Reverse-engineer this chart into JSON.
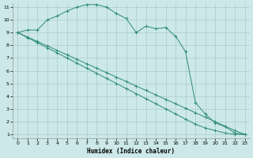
{
  "xlabel": "Humidex (Indice chaleur)",
  "bg_color": "#cce8e8",
  "grid_color": "#aacccc",
  "line_color": "#2e8b7a",
  "xlim_min": -0.5,
  "xlim_max": 23.5,
  "ylim_min": 0.7,
  "ylim_max": 11.3,
  "x_ticks": [
    0,
    1,
    2,
    3,
    4,
    5,
    6,
    7,
    8,
    9,
    10,
    11,
    12,
    13,
    14,
    15,
    16,
    17,
    18,
    19,
    20,
    21,
    22,
    23
  ],
  "y_ticks": [
    1,
    2,
    3,
    4,
    5,
    6,
    7,
    8,
    9,
    10,
    11
  ],
  "line1_x": [
    0,
    1,
    2,
    3,
    4,
    5,
    6,
    7,
    8,
    9,
    10,
    11,
    12,
    13,
    14,
    15,
    16,
    17,
    18,
    19,
    20,
    21,
    22,
    23
  ],
  "line1_y": [
    9.0,
    9.2,
    9.2,
    10.0,
    10.3,
    10.7,
    11.0,
    11.2,
    11.2,
    11.0,
    10.5,
    10.1,
    9.0,
    9.5,
    9.3,
    9.4,
    8.7,
    7.5,
    3.5,
    2.6,
    1.9,
    1.6,
    1.1,
    1.0
  ],
  "line2_x": [
    0,
    1,
    2,
    3,
    4,
    5,
    6,
    7,
    8,
    9,
    10,
    11,
    12,
    13,
    14,
    15,
    16,
    17,
    18,
    19,
    20,
    21,
    22,
    23
  ],
  "line2_y": [
    9.0,
    8.65,
    8.3,
    7.95,
    7.6,
    7.25,
    6.9,
    6.55,
    6.2,
    5.85,
    5.5,
    5.15,
    4.8,
    4.45,
    4.1,
    3.75,
    3.4,
    3.05,
    2.7,
    2.35,
    2.0,
    1.65,
    1.3,
    1.0
  ],
  "line3_x": [
    0,
    1,
    2,
    3,
    4,
    5,
    6,
    7,
    8,
    9,
    10,
    11,
    12,
    13,
    14,
    15,
    16,
    17,
    18,
    19,
    20,
    21,
    22,
    23
  ],
  "line3_y": [
    9.0,
    8.6,
    8.2,
    7.8,
    7.4,
    7.0,
    6.6,
    6.2,
    5.8,
    5.4,
    5.0,
    4.6,
    4.2,
    3.8,
    3.4,
    3.0,
    2.6,
    2.2,
    1.8,
    1.5,
    1.3,
    1.1,
    1.0,
    1.0
  ]
}
